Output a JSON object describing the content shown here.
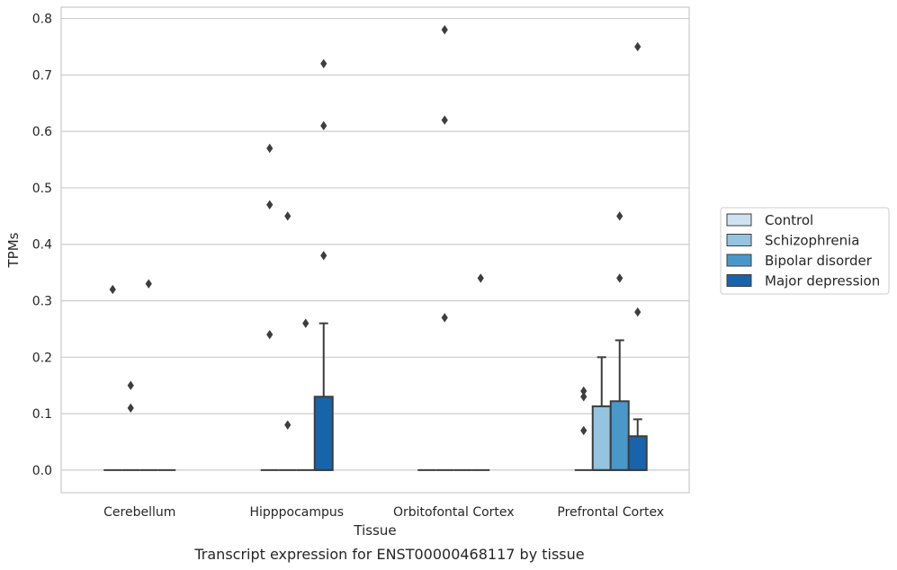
{
  "chart_data": {
    "type": "box",
    "title": "",
    "caption": "Transcript expression for ENST00000468117 by tissue",
    "xlabel": "Tissue",
    "ylabel": "TPMs",
    "ylim": [
      -0.04,
      0.82
    ],
    "yticks": [
      0.0,
      0.1,
      0.2,
      0.3,
      0.4,
      0.5,
      0.6,
      0.7,
      0.8
    ],
    "ytick_labels": [
      "0.0",
      "0.1",
      "0.2",
      "0.3",
      "0.4",
      "0.5",
      "0.6",
      "0.7",
      "0.8"
    ],
    "grid": "horizontal",
    "legend_position": "right",
    "categories": [
      "Cerebellum",
      "Hipppocampus",
      "Orbitofontal Cortex",
      "Prefrontal Cortex"
    ],
    "series": [
      {
        "name": "Control",
        "color": "#d0e1f2",
        "boxes": [
          {
            "q1": 0,
            "median": 0,
            "q3": 0,
            "whisker_low": 0,
            "whisker_high": 0,
            "outliers": [
              0.32
            ]
          },
          {
            "q1": 0,
            "median": 0,
            "q3": 0,
            "whisker_low": 0,
            "whisker_high": 0,
            "outliers": [
              0.57,
              0.47,
              0.24
            ]
          },
          {
            "q1": 0,
            "median": 0,
            "q3": 0,
            "whisker_low": 0,
            "whisker_high": 0,
            "outliers": []
          },
          {
            "q1": 0,
            "median": 0,
            "q3": 0,
            "whisker_low": 0,
            "whisker_high": 0,
            "outliers": [
              0.14,
              0.13,
              0.07
            ]
          }
        ]
      },
      {
        "name": "Schizophrenia",
        "color": "#94c4df",
        "boxes": [
          {
            "q1": 0,
            "median": 0,
            "q3": 0,
            "whisker_low": 0,
            "whisker_high": 0,
            "outliers": [
              0.15,
              0.11
            ]
          },
          {
            "q1": 0,
            "median": 0,
            "q3": 0,
            "whisker_low": 0,
            "whisker_high": 0,
            "outliers": [
              0.45,
              0.08
            ]
          },
          {
            "q1": 0,
            "median": 0,
            "q3": 0,
            "whisker_low": 0,
            "whisker_high": 0,
            "outliers": [
              0.78,
              0.62,
              0.27
            ]
          },
          {
            "q1": 0,
            "median": 0,
            "q3": 0.113,
            "whisker_low": 0,
            "whisker_high": 0.2,
            "outliers": []
          }
        ]
      },
      {
        "name": "Bipolar disorder",
        "color": "#4a98c9",
        "boxes": [
          {
            "q1": 0,
            "median": 0,
            "q3": 0,
            "whisker_low": 0,
            "whisker_high": 0,
            "outliers": [
              0.33
            ]
          },
          {
            "q1": 0,
            "median": 0,
            "q3": 0,
            "whisker_low": 0,
            "whisker_high": 0,
            "outliers": [
              0.26
            ]
          },
          {
            "q1": 0,
            "median": 0,
            "q3": 0,
            "whisker_low": 0,
            "whisker_high": 0,
            "outliers": []
          },
          {
            "q1": 0,
            "median": 0,
            "q3": 0.122,
            "whisker_low": 0,
            "whisker_high": 0.23,
            "outliers": [
              0.45,
              0.34
            ]
          }
        ]
      },
      {
        "name": "Major depression",
        "color": "#1764ab",
        "boxes": [
          {
            "q1": 0,
            "median": 0,
            "q3": 0,
            "whisker_low": 0,
            "whisker_high": 0,
            "outliers": []
          },
          {
            "q1": 0,
            "median": 0,
            "q3": 0.13,
            "whisker_low": 0,
            "whisker_high": 0.26,
            "outliers": [
              0.72,
              0.61,
              0.38
            ]
          },
          {
            "q1": 0,
            "median": 0,
            "q3": 0,
            "whisker_low": 0,
            "whisker_high": 0,
            "outliers": [
              0.34
            ]
          },
          {
            "q1": 0,
            "median": 0,
            "q3": 0.06,
            "whisker_low": 0,
            "whisker_high": 0.09,
            "outliers": [
              0.75,
              0.28
            ]
          }
        ]
      }
    ]
  }
}
